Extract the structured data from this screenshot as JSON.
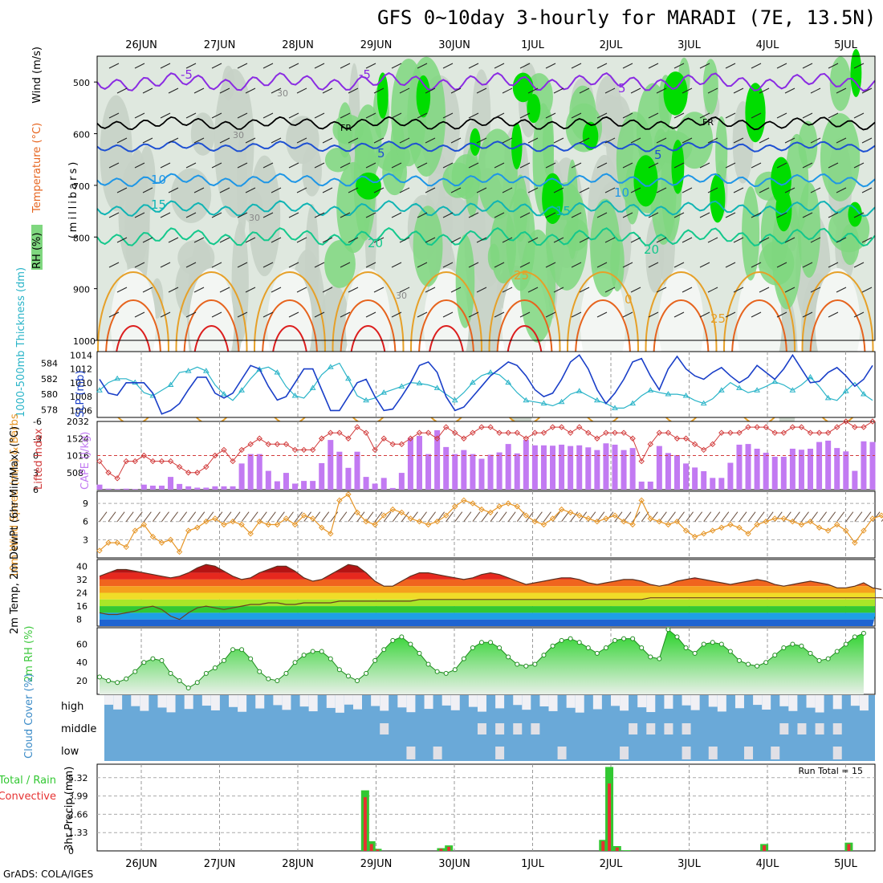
{
  "title": "GFS 0~10day 3-hourly for MARADI (7E, 13.5N)",
  "credit": "GrADS: COLA/IGES",
  "colors": {
    "rh_light": "#dfe8df",
    "rh_mid": "#c7d2c7",
    "rh_green": "#7fd77f",
    "rh_bright": "#00dd00",
    "temp_purple": "#8a2be2",
    "temp_blue": "#1e50d2",
    "temp_lightblue": "#1e96e6",
    "temp_cyan": "#10b4b4",
    "temp_teal": "#14c88c",
    "temp_orange": "#e6a028",
    "temp_darkorange": "#e6641e",
    "temp_red": "#dc1e1e",
    "slp": "#1a3fc8",
    "thickness": "#2ab4c8",
    "cape_bar": "#c27af2",
    "lifted_index": "#d23c3c",
    "wind_speed": "#e69628",
    "rh2m": "#3cc83c",
    "cloud_bg": "#6aa9d8",
    "cloud_fill": "#f0f0f5",
    "precip_total": "#32c832",
    "precip_conv": "#e63232"
  },
  "chart_data": [
    {
      "type": "heatmap",
      "name": "vertical cross-section",
      "dates": [
        "26JUN",
        "27JUN",
        "28JUN",
        "29JUN",
        "30JUN",
        "1JUL",
        "2JUL",
        "3JUL",
        "4JUL",
        "5JUL"
      ],
      "ylabel": "(millibars)",
      "ytick_labels": [
        "500",
        "600",
        "700",
        "800",
        "900",
        "1000"
      ],
      "ylim": [
        1000,
        450
      ],
      "legend_labels": {
        "rh": "RH (%)",
        "temperature": "Temperature (°C)",
        "wind": "Wind (m/s)"
      },
      "isotherm_labels": [
        "-5",
        "-5",
        "5",
        "FR",
        "FR",
        "5",
        "5",
        "10",
        "10",
        "15",
        "15",
        "20",
        "20",
        "25",
        "25",
        "0",
        "30",
        "30",
        "30",
        "30"
      ],
      "levels": {
        "freezing_mb": 580,
        "isotherms_mb": {
          "-5": 500,
          "5": 625,
          "10": 690,
          "15": 745,
          "20": 800,
          "25": 860
        }
      }
    },
    {
      "type": "line",
      "name": "slp-thickness",
      "ylabel_left": "1000-500mb Thickness (dm)",
      "ylabel_right": "SLP (mb)",
      "left_ticks": [
        "584",
        "582",
        "580",
        "578"
      ],
      "right_ticks": [
        "1014",
        "1012",
        "1010",
        "1008",
        "1006"
      ],
      "series": [
        {
          "name": "SLP (mb)",
          "values": [
            1010.5,
            1008.5,
            1008.2,
            1010,
            1010,
            1010,
            1008.5,
            1005.5,
            1006,
            1007,
            1009,
            1010.8,
            1010.8,
            1008.5,
            1007.8,
            1008.5,
            1010.5,
            1012.5,
            1012,
            1009.5,
            1007.5,
            1008,
            1010,
            1012,
            1012,
            1009,
            1006,
            1006,
            1008,
            1010,
            1010.5,
            1008,
            1006,
            1006.2,
            1008,
            1010,
            1012.5,
            1013,
            1011.5,
            1008,
            1006,
            1006.5,
            1008,
            1009.5,
            1011,
            1012,
            1013,
            1012.5,
            1011,
            1009,
            1008,
            1008.5,
            1010.5,
            1013,
            1014,
            1012,
            1009,
            1007,
            1008.5,
            1010.5,
            1013,
            1013.5,
            1011,
            1009,
            1012,
            1013.8,
            1012,
            1011,
            1010.5,
            1011.5,
            1012.2,
            1011,
            1010,
            1010.8,
            1012.5,
            1011.5,
            1010.5,
            1012,
            1014,
            1012,
            1010,
            1010.2,
            1011.5,
            1012.2,
            1011,
            1009.5,
            1010.5,
            1012.5
          ]
        },
        {
          "name": "Thickness (dm)",
          "values": [
            580.5,
            581.5,
            582,
            582,
            581.5,
            580.2,
            579.8,
            580.5,
            581.2,
            582.8,
            583,
            583.5,
            583,
            581.2,
            580,
            579.2,
            580.5,
            582,
            583.2,
            583.5,
            582.8,
            581,
            579.8,
            579.5,
            580.8,
            582.5,
            583.5,
            584,
            582,
            579.8,
            579.2,
            579.5,
            580.2,
            580.6,
            581,
            581.5,
            581.4,
            581.2,
            580.8,
            580,
            579.2,
            580.2,
            581.5,
            582.4,
            582.8,
            582.5,
            581.5,
            580.2,
            579.2,
            579,
            578.8,
            578.5,
            579,
            580,
            580.4,
            579.8,
            579.2,
            578.8,
            578.2,
            578.2,
            578.8,
            579.8,
            580.5,
            580.2,
            580,
            580,
            579.8,
            579.2,
            578.8,
            579.4,
            580.5,
            581.5,
            580.8,
            580.2,
            580.5,
            581,
            581.6,
            581.2,
            580.5,
            581.2,
            582.2,
            581,
            579.5,
            579.2,
            580.4,
            581.5,
            580,
            579.2
          ]
        }
      ]
    },
    {
      "type": "bar",
      "name": "cape-lifted-index",
      "ylabel_left": "Lifted Index",
      "ylabel_right": "CAPE (J/kg)",
      "left_ticks": [
        "-6",
        "-3",
        "0",
        "3",
        "6"
      ],
      "right_ticks": [
        "2032",
        "1524",
        "1016",
        "508"
      ],
      "series": [
        {
          "name": "CAPE (J/kg)",
          "values": [
            150,
            30,
            20,
            30,
            20,
            150,
            120,
            120,
            380,
            170,
            100,
            60,
            60,
            100,
            100,
            100,
            780,
            1060,
            1060,
            560,
            250,
            500,
            180,
            260,
            260,
            790,
            1480,
            1130,
            650,
            1130,
            380,
            180,
            350,
            50,
            500,
            1540,
            1600,
            1060,
            1770,
            1270,
            1060,
            1180,
            1060,
            920,
            1040,
            1110,
            1360,
            1080,
            1480,
            1320,
            1320,
            1310,
            1340,
            1300,
            1320,
            1260,
            1180,
            1380,
            1340,
            1180,
            1240,
            240,
            240,
            1300,
            1090,
            1030,
            780,
            660,
            550,
            350,
            350,
            800,
            1340,
            1360,
            1220,
            1100,
            980,
            980,
            1220,
            1190,
            1220,
            1420,
            1460,
            1240,
            1140,
            560,
            1440,
            1420
          ]
        },
        {
          "name": "Lifted Index",
          "values": [
            1,
            3,
            4,
            1,
            1,
            0,
            1,
            1,
            1,
            2,
            3,
            3,
            2,
            0,
            -1,
            1,
            -1,
            -2,
            -3,
            -2,
            -2,
            -2,
            -1,
            -1,
            -1,
            -3,
            -4,
            -4,
            -3,
            -5,
            -4,
            -1,
            -3,
            -2,
            -2,
            -3,
            -4,
            -4,
            -3,
            -5,
            -4,
            -3,
            -4,
            -5,
            -5,
            -4,
            -4,
            -4,
            -3,
            -4,
            -4,
            -5,
            -5,
            -4,
            -5,
            -4,
            -3,
            -4,
            -4,
            -4,
            -3,
            1,
            -2,
            -4,
            -4,
            -3,
            -3,
            -2,
            -1,
            -2,
            -4,
            -4,
            -4,
            -5,
            -5,
            -5,
            -4,
            -4,
            -5,
            -5,
            -4,
            -4,
            -4,
            -5,
            -6,
            -5,
            -5,
            -6
          ]
        }
      ]
    },
    {
      "type": "line",
      "name": "10m-wind",
      "ylabel": "10m Wind Speed (m/s) & Barbs",
      "ytick_labels": [
        "9",
        "6",
        "3"
      ],
      "series": [
        {
          "name": "10m Wind Speed (m/s)",
          "values": [
            1.2,
            2.5,
            2.5,
            1.8,
            4.5,
            5.5,
            3.5,
            2.5,
            3,
            1,
            4.5,
            5,
            6,
            6.5,
            5.5,
            6,
            5.5,
            4,
            6,
            5.5,
            5.5,
            6.5,
            5.5,
            7,
            6.5,
            5,
            4,
            9.5,
            10.5,
            7.5,
            6,
            5.5,
            7,
            8,
            7.5,
            6.5,
            6,
            5.5,
            6,
            7,
            8.5,
            9.5,
            9,
            8,
            7.5,
            8.5,
            9,
            8.5,
            7,
            6,
            5.5,
            6.5,
            8,
            7.5,
            7,
            6.5,
            6,
            6.5,
            7,
            6,
            5.5,
            9.5,
            6.5,
            6,
            5.5,
            6,
            4.5,
            3.5,
            4,
            4.5,
            5,
            5.5,
            5,
            4,
            5.5,
            6,
            6.5,
            6.5,
            6,
            5.5,
            6,
            5,
            4.5,
            5.5,
            4.5,
            2.5,
            4.5,
            6.5,
            7,
            5.5,
            5.5
          ]
        }
      ]
    },
    {
      "type": "area",
      "name": "2m-temp",
      "ylabel": "2m Temp, 2m DewPt (6hr Min/Max) (°C)",
      "ytick_labels": [
        "40",
        "32",
        "24",
        "16",
        "8"
      ],
      "series": [
        {
          "name": "2m Temp",
          "values": [
            34,
            36,
            38,
            38,
            37,
            36,
            35,
            34,
            33,
            34,
            36,
            39,
            41,
            40,
            37,
            34,
            32,
            33,
            36,
            38,
            40,
            40,
            37,
            33,
            31,
            32,
            35,
            38,
            41,
            40,
            36,
            31,
            28,
            28,
            31,
            34,
            36,
            36,
            35,
            34,
            33,
            32,
            33,
            35,
            36,
            35,
            33,
            31,
            29,
            30,
            31,
            32,
            33,
            33,
            32,
            30,
            29,
            30,
            31,
            32,
            32,
            31,
            29,
            28,
            29,
            31,
            32,
            33,
            32,
            31,
            30,
            29,
            30,
            31,
            32,
            31,
            29,
            28,
            29,
            30,
            31,
            30,
            29,
            27,
            27,
            28,
            30,
            27,
            26
          ]
        },
        {
          "name": "2m DewPt",
          "values": [
            12,
            11,
            11,
            12,
            13,
            15,
            16,
            14,
            10,
            8,
            12,
            15,
            16,
            15,
            14,
            15,
            16,
            17,
            17,
            18,
            18,
            17,
            17,
            18,
            18,
            18,
            18,
            19,
            19,
            19,
            19,
            19,
            19,
            19,
            19,
            19,
            20,
            20,
            20,
            20,
            20,
            20,
            20,
            20,
            20,
            20,
            20,
            20,
            20,
            20,
            20,
            20,
            20,
            20,
            20,
            20,
            20,
            20,
            20,
            20,
            20,
            20,
            21,
            21,
            21,
            21,
            21,
            21,
            21,
            21,
            21,
            21,
            21,
            21,
            21,
            21,
            21,
            21,
            21,
            21,
            21,
            21,
            21,
            21,
            21,
            21,
            21,
            21,
            21,
            20
          ]
        }
      ]
    },
    {
      "type": "area",
      "name": "2m-rh",
      "ylabel": "2m RH (%)",
      "ytick_labels": [
        "60",
        "40",
        "20"
      ],
      "series": [
        {
          "name": "2m RH",
          "values": [
            24,
            20,
            18,
            22,
            30,
            40,
            44,
            42,
            28,
            20,
            12,
            18,
            28,
            34,
            42,
            54,
            54,
            44,
            30,
            22,
            20,
            28,
            40,
            48,
            52,
            52,
            44,
            32,
            25,
            20,
            28,
            42,
            54,
            64,
            68,
            60,
            50,
            38,
            30,
            28,
            32,
            44,
            56,
            62,
            62,
            56,
            46,
            38,
            36,
            38,
            48,
            58,
            64,
            66,
            62,
            56,
            50,
            56,
            64,
            66,
            66,
            56,
            46,
            44,
            76,
            68,
            56,
            50,
            60,
            62,
            60,
            52,
            42,
            38,
            36,
            40,
            48,
            56,
            60,
            58,
            50,
            42,
            44,
            52,
            60,
            68,
            72
          ]
        }
      ]
    },
    {
      "type": "heatmap",
      "name": "cloud-cover",
      "ylabel": "Cloud Cover (%)",
      "rows": [
        "high",
        "middle",
        "low"
      ]
    },
    {
      "type": "bar",
      "name": "precip",
      "ylabel": "3hr Precip (mm)",
      "legend": [
        "Total / Rain",
        "Convective"
      ],
      "annotation": "Run Total = 15",
      "ytick_labels": [
        "5.32",
        "3.99",
        "2.66",
        "1.33",
        "0"
      ],
      "series": [
        {
          "name": "Total / Rain",
          "values": [
            {
              "date_index": 2.86,
              "value": 4.4
            },
            {
              "date_index": 2.94,
              "value": 0.7
            },
            {
              "date_index": 3.02,
              "value": 0.15
            },
            {
              "date_index": 3.83,
              "value": 0.2
            },
            {
              "date_index": 3.93,
              "value": 0.4
            },
            {
              "date_index": 5.9,
              "value": 0.8
            },
            {
              "date_index": 5.98,
              "value": 6.1
            },
            {
              "date_index": 6.08,
              "value": 0.35
            },
            {
              "date_index": 6.2,
              "value": 0.05
            },
            {
              "date_index": 7.96,
              "value": 0.5
            },
            {
              "date_index": 9.04,
              "value": 0.6
            }
          ]
        },
        {
          "name": "Convective",
          "values": [
            {
              "date_index": 2.86,
              "value": 3.9
            },
            {
              "date_index": 2.94,
              "value": 0.5
            },
            {
              "date_index": 3.02,
              "value": 0.1
            },
            {
              "date_index": 3.83,
              "value": 0.15
            },
            {
              "date_index": 3.93,
              "value": 0.3
            },
            {
              "date_index": 5.9,
              "value": 0.7
            },
            {
              "date_index": 5.98,
              "value": 4.9
            },
            {
              "date_index": 6.08,
              "value": 0.25
            },
            {
              "date_index": 7.96,
              "value": 0.4
            },
            {
              "date_index": 9.04,
              "value": 0.5
            }
          ]
        }
      ]
    }
  ]
}
